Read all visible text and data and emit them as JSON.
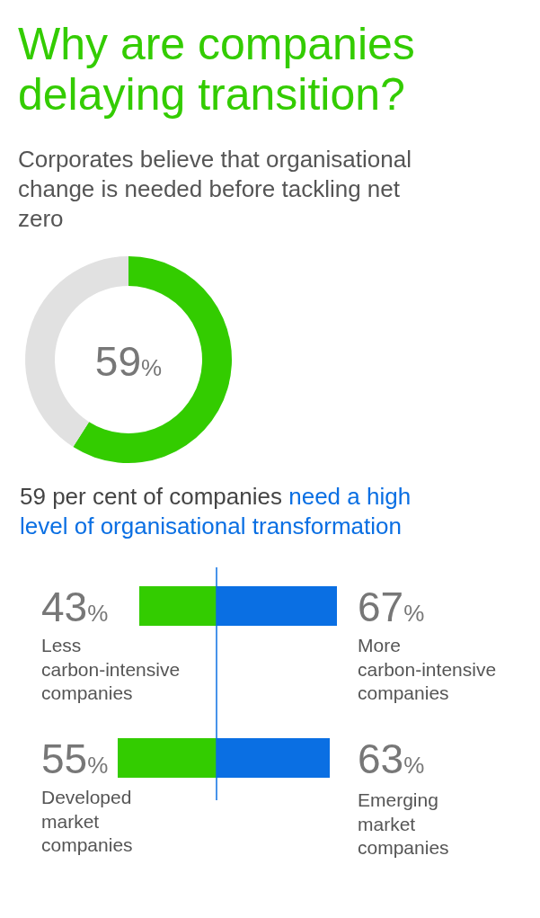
{
  "chart_data": [
    {
      "type": "donut",
      "title": "Why are companies delaying transition?",
      "subtitle": "Corporates believe that organisational change is needed before tackling net zero",
      "categories": [
        null,
        null
      ],
      "values": [
        59,
        41
      ],
      "colors": [
        "#33cc00",
        "#e1e1e1"
      ],
      "value_labels": [
        "59%",
        null
      ],
      "annotations": [
        "59 per cent of companies",
        "need a high level of organisational transformation"
      ]
    },
    {
      "type": "bar",
      "orientation": "horizontal",
      "categories": [
        "Less carbon-intensive companies",
        "Developed market companies"
      ],
      "values": [
        43,
        55
      ],
      "color": "#33cc00",
      "value_labels": [
        "43%",
        "55%"
      ]
    },
    {
      "type": "bar",
      "orientation": "horizontal",
      "categories": [
        "More carbon-intensive companies",
        "Emerging market companies"
      ],
      "values": [
        67,
        63
      ],
      "color": "#0a6fe3",
      "value_labels": [
        "67%",
        "63%"
      ]
    }
  ]
}
